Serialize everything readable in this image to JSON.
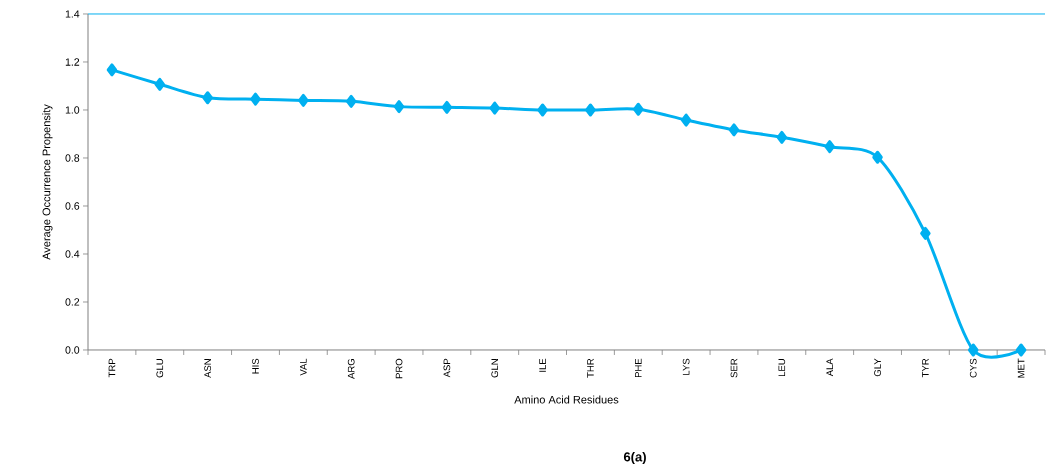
{
  "chart_data": {
    "type": "line",
    "xlabel": "Amino Acid Residues",
    "ylabel": "Average Occurrence Propensity",
    "categories": [
      "TRP",
      "GLU",
      "ASN",
      "HIS",
      "VAL",
      "ARG",
      "PRO",
      "ASP",
      "GLN",
      "ILE",
      "THR",
      "PHE",
      "LYS",
      "SER",
      "LEU",
      "ALA",
      "GLY",
      "TYR",
      "CYS",
      "MET"
    ],
    "series": [
      {
        "color": "#00b0f0",
        "values": [
          1.167,
          1.107,
          1.051,
          1.045,
          1.04,
          1.036,
          1.014,
          1.011,
          1.008,
          1.0,
          1.0,
          1.003,
          0.958,
          0.917,
          0.886,
          0.847,
          0.803,
          0.486,
          0.0,
          0.0
        ]
      }
    ],
    "ylim": [
      0,
      1.4
    ],
    "yticks": [
      {
        "value": 0,
        "label": "0.0"
      },
      {
        "value": 0.2,
        "label": "0.2"
      },
      {
        "value": 0.4,
        "label": "0.4"
      },
      {
        "value": 0.6,
        "label": "0.6"
      },
      {
        "value": 0.8,
        "label": "0.8"
      },
      {
        "value": 1.0,
        "label": "1.0"
      },
      {
        "value": 1.2,
        "label": "1.2"
      },
      {
        "value": 1.4,
        "label": "1.4"
      }
    ],
    "marker": "diamond",
    "line_style": "solid",
    "grid": false,
    "annotations": [
      "**6(a)**"
    ]
  }
}
